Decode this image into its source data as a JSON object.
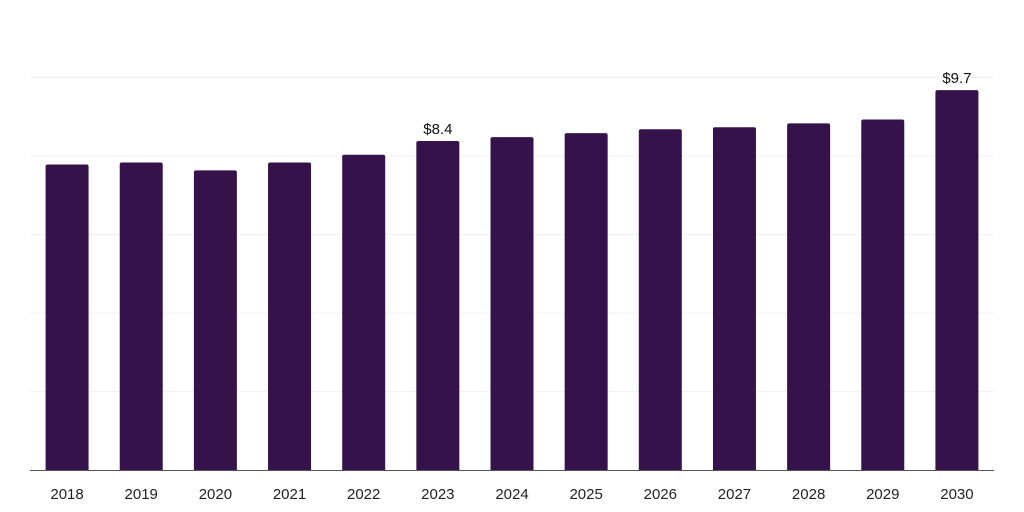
{
  "chart_data": {
    "type": "bar",
    "categories": [
      "2018",
      "2019",
      "2020",
      "2021",
      "2022",
      "2023",
      "2024",
      "2025",
      "2026",
      "2027",
      "2028",
      "2029",
      "2030"
    ],
    "values": [
      7.8,
      7.85,
      7.65,
      7.85,
      8.05,
      8.4,
      8.5,
      8.6,
      8.7,
      8.75,
      8.85,
      8.95,
      9.7
    ],
    "data_labels": [
      "",
      "",
      "",
      "",
      "",
      "$8.4",
      "",
      "",
      "",
      "",
      "",
      "",
      "$9.7"
    ],
    "bar_color": "#36124a",
    "grid": true,
    "legend": "none"
  }
}
